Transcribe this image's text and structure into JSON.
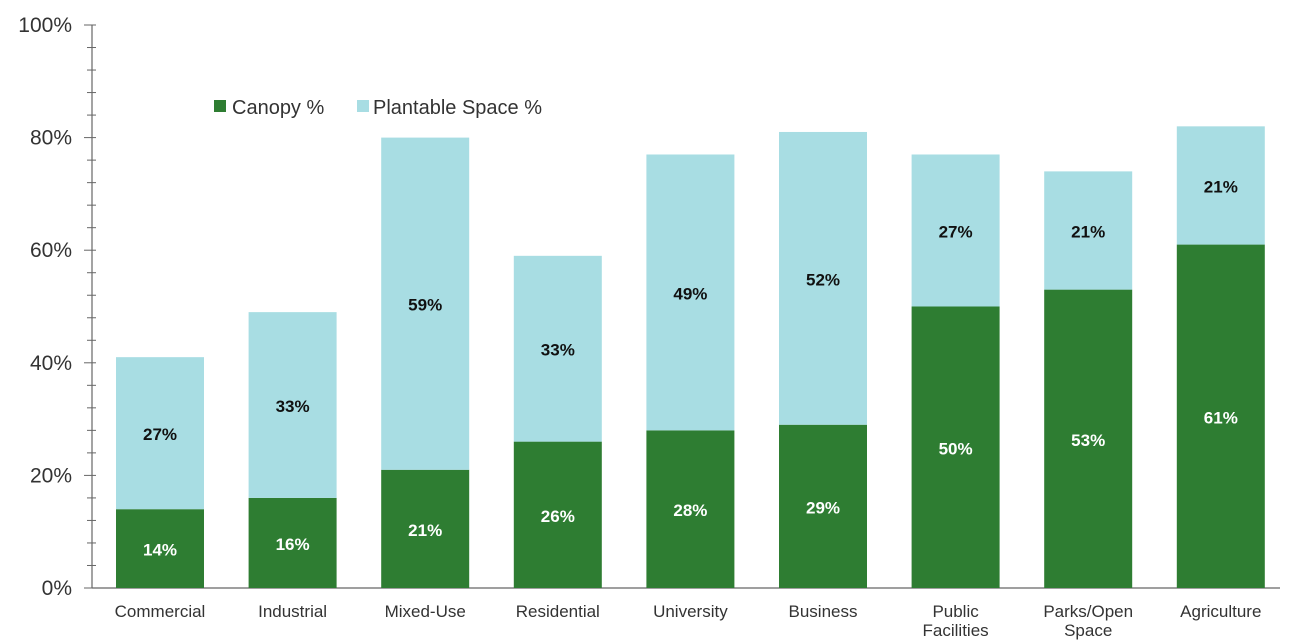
{
  "chart_data": {
    "type": "bar",
    "stacked": true,
    "categories": [
      "Commercial",
      "Industrial",
      "Mixed-Use",
      "Residential",
      "University",
      "Business",
      "Public Facilities",
      "Parks/Open Space",
      "Agriculture"
    ],
    "series": [
      {
        "name": "Canopy %",
        "values": [
          14,
          16,
          21,
          26,
          28,
          29,
          50,
          53,
          61
        ],
        "labels": [
          "14%",
          "16%",
          "21%",
          "26%",
          "28%",
          "29%",
          "50%",
          "53%",
          "61%"
        ]
      },
      {
        "name": "Plantable Space %",
        "values": [
          27,
          33,
          59,
          33,
          49,
          52,
          27,
          21,
          21
        ],
        "labels": [
          "27%",
          "33%",
          "59%",
          "33%",
          "49%",
          "52%",
          "27%",
          "21%",
          "21%"
        ]
      }
    ],
    "ylim": [
      0,
      100
    ],
    "yticks": [
      "0%",
      "20%",
      "40%",
      "60%",
      "80%",
      "100%"
    ],
    "legend_position": "top-left",
    "grid": false,
    "colors": {
      "canopy": "#2e7d32",
      "plantable": "#a8dde3",
      "canopy_label": "#ffffff",
      "plantable_label": "#111111"
    }
  }
}
